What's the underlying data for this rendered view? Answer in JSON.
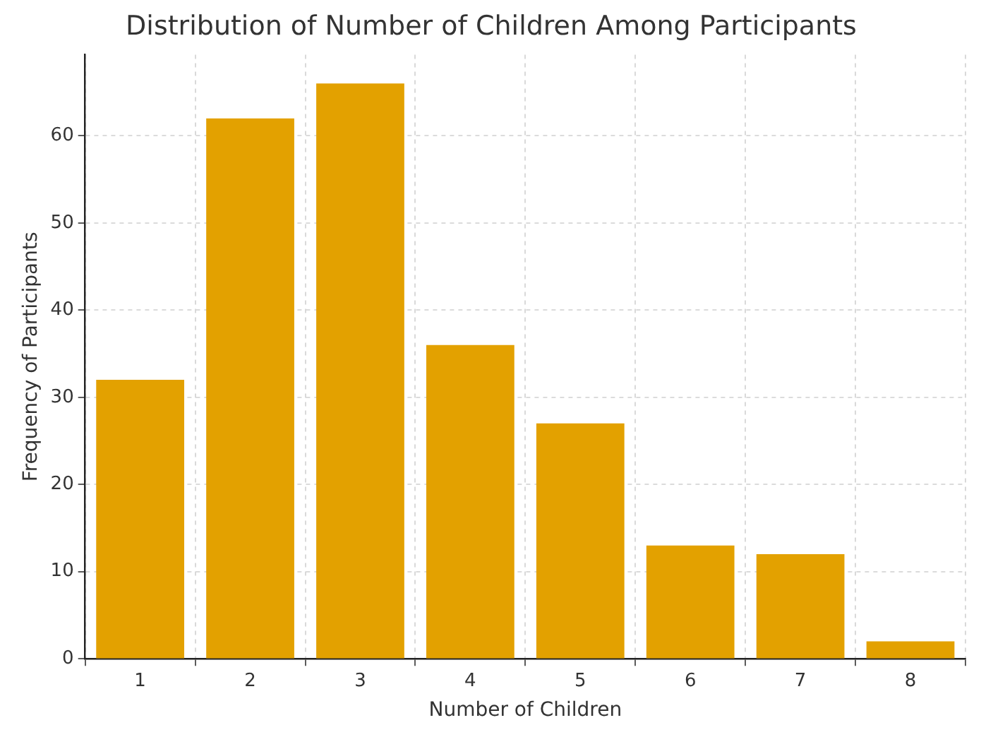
{
  "chart_data": {
    "type": "bar",
    "title": "Distribution of Number of Children Among Participants",
    "xlabel": "Number of Children",
    "ylabel": "Frequency of Participants",
    "categories": [
      "1",
      "2",
      "3",
      "4",
      "5",
      "6",
      "7",
      "8"
    ],
    "values": [
      32,
      62,
      66,
      36,
      27,
      13,
      12,
      2
    ],
    "color": "#e3a100",
    "ylim": [
      0,
      69.3
    ],
    "yticks": [
      0,
      10,
      20,
      30,
      40,
      50,
      60
    ],
    "grid": true
  }
}
